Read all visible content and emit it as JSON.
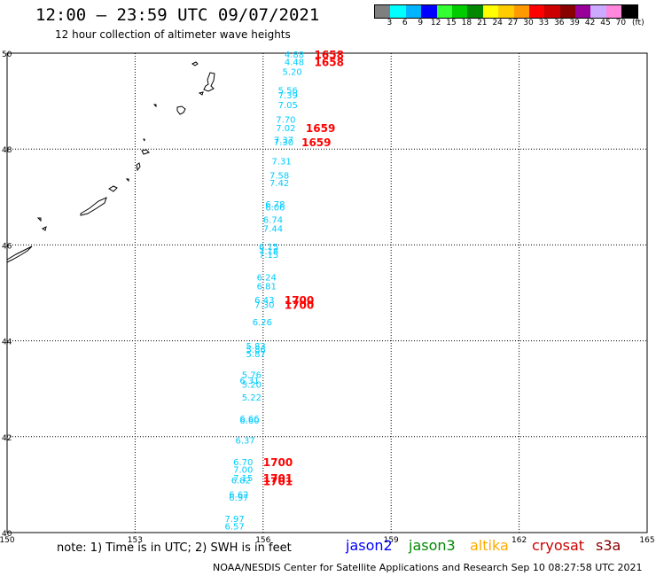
{
  "header": {
    "title": "12:00 — 23:59 UTC 09/07/2021",
    "subtitle": "12 hour collection of altimeter wave heights"
  },
  "legend": {
    "colors": [
      "#7f7f7f",
      "#00ffff",
      "#00b4ff",
      "#0000ff",
      "#33ff33",
      "#00cc00",
      "#008800",
      "#ffff00",
      "#ffcc00",
      "#ff9900",
      "#ff0000",
      "#cc0000",
      "#880000",
      "#990099",
      "#ccaaff",
      "#ff88dd",
      "#000000"
    ],
    "labels": [
      "3",
      "6",
      "9",
      "12",
      "15",
      "18",
      "21",
      "24",
      "27",
      "30",
      "33",
      "36",
      "39",
      "42",
      "45",
      "70",
      "(ft)"
    ]
  },
  "map": {
    "lat_labels": [
      "50",
      "48",
      "46",
      "44",
      "42",
      "40"
    ],
    "lon_labels": [
      "150",
      "153",
      "156",
      "159",
      "162",
      "165"
    ],
    "heights": [
      {
        "v": "4.88",
        "lon": 156.5,
        "lat": 49.98
      },
      {
        "v": "4.48",
        "lon": 156.5,
        "lat": 49.82
      },
      {
        "v": "5.20",
        "lon": 156.45,
        "lat": 49.62
      },
      {
        "v": "5.56",
        "lon": 156.35,
        "lat": 49.23
      },
      {
        "v": "7.39",
        "lon": 156.35,
        "lat": 49.13
      },
      {
        "v": "7.05",
        "lon": 156.35,
        "lat": 48.93
      },
      {
        "v": "7.70",
        "lon": 156.3,
        "lat": 48.62
      },
      {
        "v": "7.02",
        "lon": 156.3,
        "lat": 48.45
      },
      {
        "v": "7.37",
        "lon": 156.25,
        "lat": 48.2
      },
      {
        "v": "7.30",
        "lon": 156.25,
        "lat": 48.15
      },
      {
        "v": "7.31",
        "lon": 156.2,
        "lat": 47.75
      },
      {
        "v": "7.58",
        "lon": 156.15,
        "lat": 47.46
      },
      {
        "v": "7.42",
        "lon": 156.15,
        "lat": 47.3
      },
      {
        "v": "6.78",
        "lon": 156.05,
        "lat": 46.86
      },
      {
        "v": "6.06",
        "lon": 156.05,
        "lat": 46.79
      },
      {
        "v": "6.74",
        "lon": 156.0,
        "lat": 46.53
      },
      {
        "v": "7.44",
        "lon": 156.0,
        "lat": 46.35
      },
      {
        "v": "6.15",
        "lon": 155.9,
        "lat": 45.97
      },
      {
        "v": "7.18",
        "lon": 155.9,
        "lat": 45.88
      },
      {
        "v": "7.15",
        "lon": 155.9,
        "lat": 45.8
      },
      {
        "v": "6.24",
        "lon": 155.85,
        "lat": 45.33
      },
      {
        "v": "6.81",
        "lon": 155.85,
        "lat": 45.15
      },
      {
        "v": "6.43",
        "lon": 155.8,
        "lat": 44.86
      },
      {
        "v": "7.30",
        "lon": 155.8,
        "lat": 44.76
      },
      {
        "v": "6.26",
        "lon": 155.75,
        "lat": 44.4
      },
      {
        "v": "5.83",
        "lon": 155.6,
        "lat": 43.9
      },
      {
        "v": "5.86",
        "lon": 155.6,
        "lat": 43.83
      },
      {
        "v": "5.87",
        "lon": 155.6,
        "lat": 43.73
      },
      {
        "v": "5.76",
        "lon": 155.5,
        "lat": 43.3
      },
      {
        "v": "6.31",
        "lon": 155.45,
        "lat": 43.18
      },
      {
        "v": "5.20",
        "lon": 155.5,
        "lat": 43.1
      },
      {
        "v": "5.22",
        "lon": 155.5,
        "lat": 42.83
      },
      {
        "v": "6.66",
        "lon": 155.45,
        "lat": 42.38
      },
      {
        "v": "6.60",
        "lon": 155.45,
        "lat": 42.35
      },
      {
        "v": "6.37",
        "lon": 155.35,
        "lat": 41.93
      },
      {
        "v": "6.70",
        "lon": 155.3,
        "lat": 41.48
      },
      {
        "v": "7.00",
        "lon": 155.3,
        "lat": 41.32
      },
      {
        "v": "7.15",
        "lon": 155.3,
        "lat": 41.15
      },
      {
        "v": "6.82",
        "lon": 155.25,
        "lat": 41.1
      },
      {
        "v": "6.62",
        "lon": 155.2,
        "lat": 40.8
      },
      {
        "v": "6.97",
        "lon": 155.2,
        "lat": 40.74
      },
      {
        "v": "7.97",
        "lon": 155.1,
        "lat": 40.3
      },
      {
        "v": "6.57",
        "lon": 155.1,
        "lat": 40.14
      }
    ],
    "times": [
      {
        "v": "1658",
        "lon": 157.2,
        "lat": 49.98
      },
      {
        "v": "1658",
        "lon": 157.2,
        "lat": 49.82
      },
      {
        "v": "1659",
        "lon": 157.0,
        "lat": 48.45
      },
      {
        "v": "1659",
        "lon": 156.9,
        "lat": 48.15
      },
      {
        "v": "1700",
        "lon": 156.5,
        "lat": 44.86
      },
      {
        "v": "1700",
        "lon": 156.5,
        "lat": 44.76
      },
      {
        "v": "1700",
        "lon": 156.0,
        "lat": 41.48
      },
      {
        "v": "1701",
        "lon": 156.0,
        "lat": 41.15
      },
      {
        "v": "1701",
        "lon": 156.0,
        "lat": 41.08
      }
    ]
  },
  "note": "note: 1) Time is in UTC; 2) SWH is in feet",
  "satellites": [
    {
      "name": "jason2",
      "color": "#0000ff"
    },
    {
      "name": "jason3",
      "color": "#008800"
    },
    {
      "name": "altika",
      "color": "#ffaa00"
    },
    {
      "name": "cryosat",
      "color": "#cc0000"
    },
    {
      "name": "s3a",
      "color": "#880000"
    }
  ],
  "footer": "NOAA/NESDIS Center for Satellite Applications and Research   Sep 10 08:27:58 UTC 2021",
  "colors": {
    "swh": "#00ccff",
    "time": "#ff0000"
  }
}
